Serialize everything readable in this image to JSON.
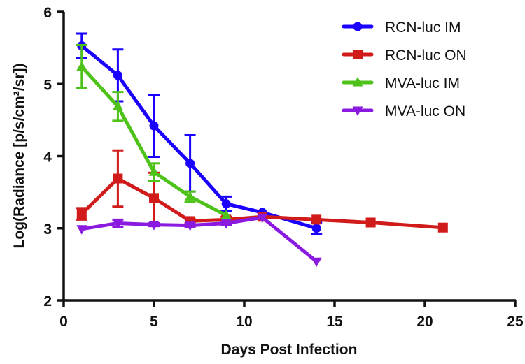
{
  "chart_data": {
    "type": "line",
    "title": "",
    "xlabel": "Days Post Infection",
    "ylabel": "Log(Radiance [p/s/cm²/sr])",
    "xlim": [
      0,
      25
    ],
    "ylim": [
      2,
      6
    ],
    "xticks": [
      "0",
      "5",
      "10",
      "15",
      "20",
      "25"
    ],
    "yticks": [
      "2",
      "3",
      "4",
      "5",
      "6"
    ],
    "grid": false,
    "legend_position": "top-right",
    "series": [
      {
        "name": "RCN-luc IM",
        "color": "#1a00ff",
        "marker": "circle",
        "x": [
          1,
          3,
          5,
          7,
          9,
          11,
          14
        ],
        "y": [
          5.53,
          5.12,
          4.42,
          3.9,
          3.34,
          3.22,
          3.0
        ],
        "err": [
          0.17,
          0.36,
          0.43,
          0.39,
          0.1,
          0.0,
          0.08
        ]
      },
      {
        "name": "RCN-luc ON",
        "color": "#d11a1a",
        "marker": "square",
        "x": [
          1,
          3,
          5,
          7,
          9,
          11,
          14,
          17,
          21
        ],
        "y": [
          3.2,
          3.69,
          3.42,
          3.1,
          3.12,
          3.16,
          3.12,
          3.08,
          3.01
        ],
        "err": [
          0.08,
          0.39,
          0.35,
          0.03,
          0.04,
          0.0,
          0.0,
          0.0,
          0.0
        ]
      },
      {
        "name": "MVA-luc IM",
        "color": "#4fc21a",
        "marker": "triangle-up",
        "x": [
          1,
          3,
          5,
          7,
          9
        ],
        "y": [
          5.24,
          4.69,
          3.78,
          3.44,
          3.18
        ],
        "err": [
          0.3,
          0.2,
          0.12,
          0.07,
          0.0
        ]
      },
      {
        "name": "MVA-luc ON",
        "color": "#8a1ae0",
        "marker": "triangle-down",
        "x": [
          1,
          3,
          5,
          7,
          9,
          11,
          14
        ],
        "y": [
          2.99,
          3.07,
          3.05,
          3.04,
          3.07,
          3.15,
          2.54
        ],
        "err": [
          0.0,
          0.05,
          0.02,
          0.02,
          0.02,
          0.0,
          0.0
        ]
      }
    ]
  }
}
